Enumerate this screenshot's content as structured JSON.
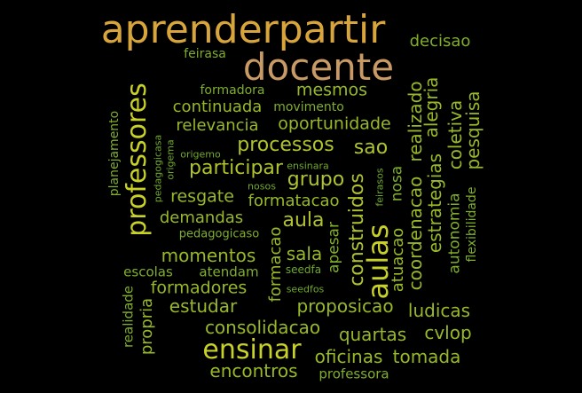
{
  "words": [
    {
      "text": "aprenderpartir",
      "color": "#d8a43c",
      "weight": 5
    },
    {
      "text": "docente",
      "color": "#c79a66",
      "weight": 5
    },
    {
      "text": "decisao",
      "color": "#7fae2d",
      "weight": 2
    },
    {
      "text": "feirasa",
      "color": "#7fae2d",
      "weight": 1
    },
    {
      "text": "formadora",
      "color": "#7fae2d",
      "weight": 1
    },
    {
      "text": "mesmos",
      "color": "#98b82a",
      "weight": 2
    },
    {
      "text": "continuada",
      "color": "#98b82a",
      "weight": 2
    },
    {
      "text": "movimento",
      "color": "#7fae2d",
      "weight": 1
    },
    {
      "text": "relevancia",
      "color": "#98b82a",
      "weight": 2
    },
    {
      "text": "oportunidade",
      "color": "#98b82a",
      "weight": 2
    },
    {
      "text": "processos",
      "color": "#b0c22c",
      "weight": 3
    },
    {
      "text": "sao",
      "color": "#b0c22c",
      "weight": 3
    },
    {
      "text": "participar",
      "color": "#b0c22c",
      "weight": 3
    },
    {
      "text": "origemo",
      "color": "#6fa82e",
      "weight": 0
    },
    {
      "text": "ensinara",
      "color": "#6fa82e",
      "weight": 0
    },
    {
      "text": "grupo",
      "color": "#b0c22c",
      "weight": 3
    },
    {
      "text": "resgate",
      "color": "#98b82a",
      "weight": 2
    },
    {
      "text": "nosos",
      "color": "#6fa82e",
      "weight": 0
    },
    {
      "text": "formatacao",
      "color": "#98b82a",
      "weight": 2
    },
    {
      "text": "demandas",
      "color": "#98b82a",
      "weight": 2
    },
    {
      "text": "aula",
      "color": "#b0c22c",
      "weight": 3
    },
    {
      "text": "pedagogicaso",
      "color": "#7fae2d",
      "weight": 1
    },
    {
      "text": "momentos",
      "color": "#98b82a",
      "weight": 2
    },
    {
      "text": "sala",
      "color": "#98b82a",
      "weight": 2
    },
    {
      "text": "escolas",
      "color": "#7fae2d",
      "weight": 1
    },
    {
      "text": "atendam",
      "color": "#7fae2d",
      "weight": 1
    },
    {
      "text": "seedfa",
      "color": "#6fa82e",
      "weight": 0
    },
    {
      "text": "formadores",
      "color": "#98b82a",
      "weight": 2
    },
    {
      "text": "seedfos",
      "color": "#6fa82e",
      "weight": 0
    },
    {
      "text": "estudar",
      "color": "#98b82a",
      "weight": 2
    },
    {
      "text": "proposicao",
      "color": "#98b82a",
      "weight": 2
    },
    {
      "text": "ludicas",
      "color": "#98b82a",
      "weight": 2
    },
    {
      "text": "consolidacao",
      "color": "#98b82a",
      "weight": 2
    },
    {
      "text": "quartas",
      "color": "#98b82a",
      "weight": 2
    },
    {
      "text": "cvlop",
      "color": "#98b82a",
      "weight": 2
    },
    {
      "text": "ensinar",
      "color": "#c8d02a",
      "weight": 4
    },
    {
      "text": "oficinas",
      "color": "#98b82a",
      "weight": 2
    },
    {
      "text": "tomada",
      "color": "#98b82a",
      "weight": 2
    },
    {
      "text": "encontros",
      "color": "#98b82a",
      "weight": 2
    },
    {
      "text": "professora",
      "color": "#7fae2d",
      "weight": 1
    },
    {
      "text": "professores",
      "color": "#c8d02a",
      "weight": 4
    },
    {
      "text": "planejamento",
      "color": "#7fae2d",
      "weight": 1
    },
    {
      "text": "pedagogicasa",
      "color": "#6fa82e",
      "weight": 0
    },
    {
      "text": "origema",
      "color": "#6fa82e",
      "weight": 0
    },
    {
      "text": "construidos",
      "color": "#b0c22c",
      "weight": 3
    },
    {
      "text": "feirasos",
      "color": "#6fa82e",
      "weight": 0
    },
    {
      "text": "aulas",
      "color": "#c8d02a",
      "weight": 4
    },
    {
      "text": "nosa",
      "color": "#7fae2d",
      "weight": 1
    },
    {
      "text": "atuacao",
      "color": "#98b82a",
      "weight": 2
    },
    {
      "text": "coordenacao",
      "color": "#98b82a",
      "weight": 2
    },
    {
      "text": "realizado",
      "color": "#98b82a",
      "weight": 2
    },
    {
      "text": "alegria",
      "color": "#98b82a",
      "weight": 2
    },
    {
      "text": "estrategias",
      "color": "#98b82a",
      "weight": 2
    },
    {
      "text": "coletiva",
      "color": "#98b82a",
      "weight": 2
    },
    {
      "text": "autonomia",
      "color": "#7fae2d",
      "weight": 1
    },
    {
      "text": "pesquisa",
      "color": "#98b82a",
      "weight": 2
    },
    {
      "text": "flexibilidade",
      "color": "#7fae2d",
      "weight": 1
    },
    {
      "text": "formacao",
      "color": "#98b82a",
      "weight": 2
    },
    {
      "text": "apesar",
      "color": "#7fae2d",
      "weight": 1
    },
    {
      "text": "realidade",
      "color": "#7fae2d",
      "weight": 1
    },
    {
      "text": "propria",
      "color": "#98b82a",
      "weight": 2
    }
  ]
}
